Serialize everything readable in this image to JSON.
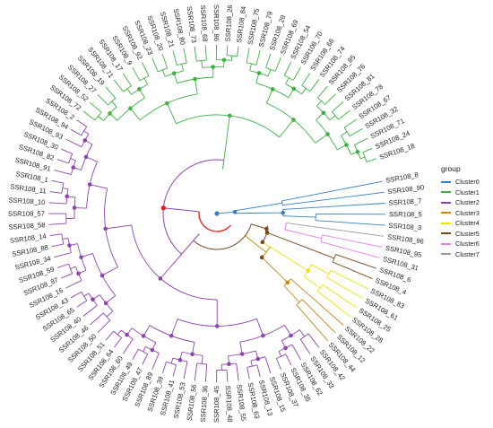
{
  "legend": {
    "title": "group",
    "items": [
      {
        "label": "Cluster0",
        "color": "#3a7fbf"
      },
      {
        "label": "Cluster1",
        "color": "#3cb043"
      },
      {
        "label": "Cluster2",
        "color": "#8e44ad"
      },
      {
        "label": "Cluster3",
        "color": "#c68a10"
      },
      {
        "label": "Cluster4",
        "color": "#e6e600"
      },
      {
        "label": "Cluster5",
        "color": "#7a4a1e"
      },
      {
        "label": "Cluster6",
        "color": "#e67fe6"
      },
      {
        "label": "Cluster7",
        "color": "#9a9a9a"
      }
    ]
  },
  "tree": {
    "node_color": "#4a4a4a",
    "root_color": "#e01b1b",
    "tips": [
      {
        "label": "SSR108_8",
        "group": "Cluster0"
      },
      {
        "label": "SSR108_90",
        "group": "Cluster0"
      },
      {
        "label": "SSR108_7",
        "group": "Cluster0"
      },
      {
        "label": "SSR108_5",
        "group": "Cluster0"
      },
      {
        "label": "SSR108_3",
        "group": "Cluster0"
      },
      {
        "label": "SSR108_96",
        "group": "Cluster7"
      },
      {
        "label": "SSR108_95",
        "group": "Cluster6"
      },
      {
        "label": "SSR108_31",
        "group": "Cluster6"
      },
      {
        "label": "SSR108_6",
        "group": "Cluster5"
      },
      {
        "label": "SSR108_4",
        "group": "Cluster5"
      },
      {
        "label": "SSR108_83",
        "group": "Cluster4"
      },
      {
        "label": "SSR108_61",
        "group": "Cluster4"
      },
      {
        "label": "SSR108_25",
        "group": "Cluster4"
      },
      {
        "label": "SSR108_28",
        "group": "Cluster4"
      },
      {
        "label": "SSR108_22",
        "group": "Cluster3"
      },
      {
        "label": "SSR108_12",
        "group": "Cluster3"
      },
      {
        "label": "SSR108_44",
        "group": "Cluster3"
      },
      {
        "label": "SSR108_42",
        "group": "Cluster2"
      },
      {
        "label": "SSR108_33",
        "group": "Cluster2"
      },
      {
        "label": "SSR108_62",
        "group": "Cluster2"
      },
      {
        "label": "SSR108_35",
        "group": "Cluster2"
      },
      {
        "label": "SSR108_37",
        "group": "Cluster2"
      },
      {
        "label": "SSR108_15",
        "group": "Cluster2"
      },
      {
        "label": "SSR108_13",
        "group": "Cluster2"
      },
      {
        "label": "SSR108_63",
        "group": "Cluster2"
      },
      {
        "label": "SSR108_55",
        "group": "Cluster2"
      },
      {
        "label": "SSR108_48",
        "group": "Cluster2"
      },
      {
        "label": "SSR108_45",
        "group": "Cluster2"
      },
      {
        "label": "SSR108_36",
        "group": "Cluster2"
      },
      {
        "label": "SSR108_56",
        "group": "Cluster2"
      },
      {
        "label": "SSR108_53",
        "group": "Cluster2"
      },
      {
        "label": "SSR108_41",
        "group": "Cluster2"
      },
      {
        "label": "SSR108_39",
        "group": "Cluster2"
      },
      {
        "label": "SSR108_89",
        "group": "Cluster2"
      },
      {
        "label": "SSR108_47",
        "group": "Cluster2"
      },
      {
        "label": "SSR108_49",
        "group": "Cluster2"
      },
      {
        "label": "SSR108_60",
        "group": "Cluster2"
      },
      {
        "label": "SSR108_64",
        "group": "Cluster2"
      },
      {
        "label": "SSR108_51",
        "group": "Cluster2"
      },
      {
        "label": "SSR108_50",
        "group": "Cluster2"
      },
      {
        "label": "SSR108_46",
        "group": "Cluster2"
      },
      {
        "label": "SSR108_40",
        "group": "Cluster2"
      },
      {
        "label": "SSR108_65",
        "group": "Cluster2"
      },
      {
        "label": "SSR108_43",
        "group": "Cluster2"
      },
      {
        "label": "SSR108_16",
        "group": "Cluster2"
      },
      {
        "label": "SSR108_87",
        "group": "Cluster2"
      },
      {
        "label": "SSR108_59",
        "group": "Cluster2"
      },
      {
        "label": "SSR108_34",
        "group": "Cluster2"
      },
      {
        "label": "SSR108_88",
        "group": "Cluster2"
      },
      {
        "label": "SSR108_14",
        "group": "Cluster2"
      },
      {
        "label": "SSR108_58",
        "group": "Cluster2"
      },
      {
        "label": "SSR108_57",
        "group": "Cluster2"
      },
      {
        "label": "SSR108_10",
        "group": "Cluster2"
      },
      {
        "label": "SSR108_11",
        "group": "Cluster2"
      },
      {
        "label": "SSR108_1",
        "group": "Cluster2"
      },
      {
        "label": "SSR108_91",
        "group": "Cluster2"
      },
      {
        "label": "SSR108_82",
        "group": "Cluster2"
      },
      {
        "label": "SSR108_30",
        "group": "Cluster2"
      },
      {
        "label": "SSR108_93",
        "group": "Cluster2"
      },
      {
        "label": "SSR108_94",
        "group": "Cluster2"
      },
      {
        "label": "SSR108_2",
        "group": "Cluster2"
      },
      {
        "label": "SSR108_72",
        "group": "Cluster1"
      },
      {
        "label": "SSR108_52",
        "group": "Cluster1"
      },
      {
        "label": "SSR108_27",
        "group": "Cluster1"
      },
      {
        "label": "SSR108_19",
        "group": "Cluster1"
      },
      {
        "label": "SSR108_71",
        "group": "Cluster1"
      },
      {
        "label": "SSR108_17",
        "group": "Cluster1"
      },
      {
        "label": "SSR108_9",
        "group": "Cluster1"
      },
      {
        "label": "SSR108_92",
        "group": "Cluster1"
      },
      {
        "label": "SSR108_23",
        "group": "Cluster1"
      },
      {
        "label": "SSR108_20",
        "group": "Cluster1"
      },
      {
        "label": "SSR108_21",
        "group": "Cluster1"
      },
      {
        "label": "SSR108_80",
        "group": "Cluster1"
      },
      {
        "label": "SSR108_73",
        "group": "Cluster1"
      },
      {
        "label": "SSR108_68",
        "group": "Cluster1"
      },
      {
        "label": "SSR108_86",
        "group": "Cluster1"
      },
      {
        "label": "SSR108_26",
        "group": "Cluster1"
      },
      {
        "label": "SSR108_84",
        "group": "Cluster1"
      },
      {
        "label": "SSR108_75",
        "group": "Cluster1"
      },
      {
        "label": "SSR108_79",
        "group": "Cluster1"
      },
      {
        "label": "SSR108_29",
        "group": "Cluster1"
      },
      {
        "label": "SSR108_69",
        "group": "Cluster1"
      },
      {
        "label": "SSR108_54",
        "group": "Cluster1"
      },
      {
        "label": "SSR108_70",
        "group": "Cluster1"
      },
      {
        "label": "SSR108_66",
        "group": "Cluster1"
      },
      {
        "label": "SSR108_74",
        "group": "Cluster1"
      },
      {
        "label": "SSR108_85",
        "group": "Cluster1"
      },
      {
        "label": "SSR108_76",
        "group": "Cluster1"
      },
      {
        "label": "SSR108_81",
        "group": "Cluster1"
      },
      {
        "label": "SSR108_78",
        "group": "Cluster1"
      },
      {
        "label": "SSR108_67",
        "group": "Cluster1"
      },
      {
        "label": "SSR108_32",
        "group": "Cluster1"
      },
      {
        "label": "SSR108_71",
        "group": "Cluster1"
      },
      {
        "label": "SSR108_24",
        "group": "Cluster1"
      },
      {
        "label": "SSR108_18",
        "group": "Cluster1"
      }
    ]
  }
}
